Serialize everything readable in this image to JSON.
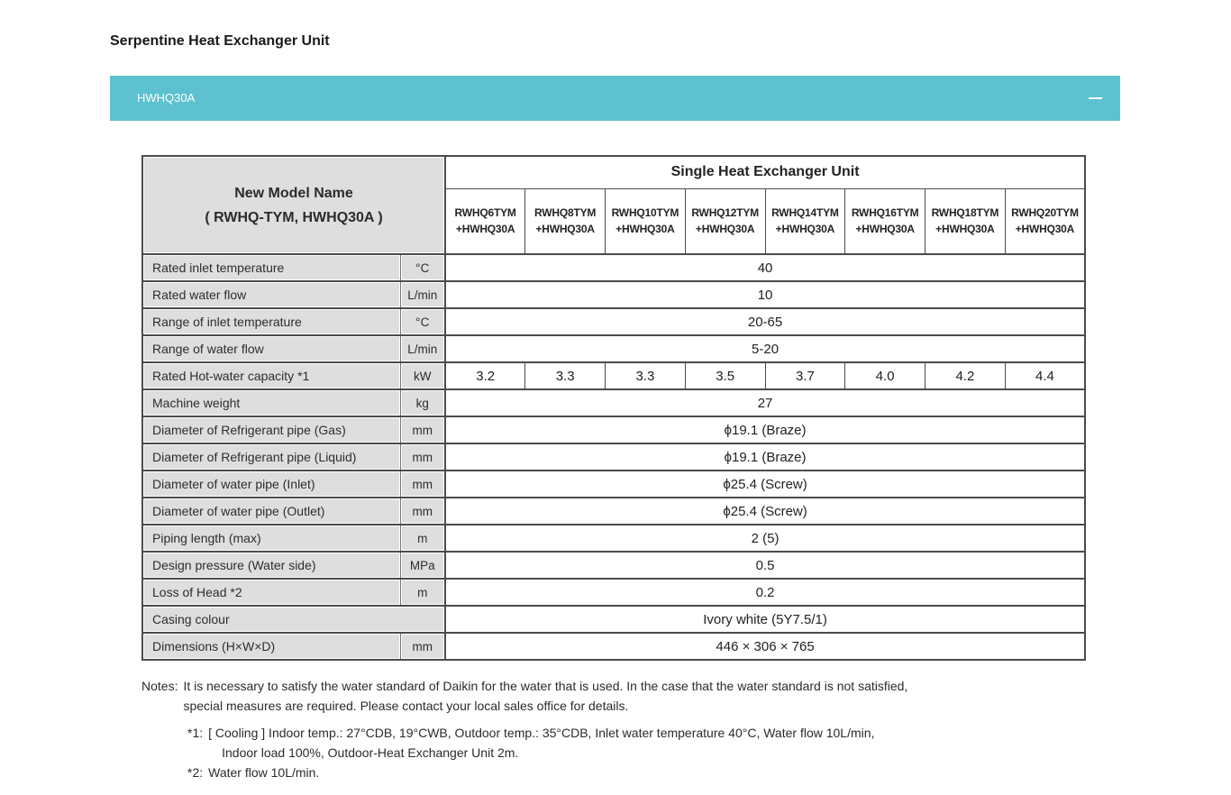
{
  "page": {
    "title": "Serpentine Heat Exchanger Unit"
  },
  "colors": {
    "accent_teal": "#5ec1cf",
    "cell_gray": "#dedede",
    "border_dark": "#4b4b4b"
  },
  "accordion": {
    "label": "HWHQ30A",
    "state_icon": "minus-icon"
  },
  "table": {
    "corner_header": {
      "line1": "New Model Name",
      "line2": "( RWHQ-TYM, HWHQ30A )"
    },
    "group_header": "Single Heat Exchanger Unit",
    "model_columns": [
      {
        "line1": "RWHQ6TYM",
        "line2": "+HWHQ30A"
      },
      {
        "line1": "RWHQ8TYM",
        "line2": "+HWHQ30A"
      },
      {
        "line1": "RWHQ10TYM",
        "line2": "+HWHQ30A"
      },
      {
        "line1": "RWHQ12TYM",
        "line2": "+HWHQ30A"
      },
      {
        "line1": "RWHQ14TYM",
        "line2": "+HWHQ30A"
      },
      {
        "line1": "RWHQ16TYM",
        "line2": "+HWHQ30A"
      },
      {
        "line1": "RWHQ18TYM",
        "line2": "+HWHQ30A"
      },
      {
        "line1": "RWHQ20TYM",
        "line2": "+HWHQ30A"
      }
    ],
    "rows": [
      {
        "label": "Rated inlet temperature",
        "unit": "°C",
        "value": "40"
      },
      {
        "label": "Rated water flow",
        "unit": "L/min",
        "value": "10"
      },
      {
        "label": "Range of inlet temperature",
        "unit": "°C",
        "value": "20-65"
      },
      {
        "label": "Range of water flow",
        "unit": "L/min",
        "value": "5-20"
      },
      {
        "label": "Rated Hot-water capacity *1",
        "unit": "kW",
        "values": [
          "3.2",
          "3.3",
          "3.3",
          "3.5",
          "3.7",
          "4.0",
          "4.2",
          "4.4"
        ]
      },
      {
        "label": "Machine weight",
        "unit": "kg",
        "value": "27"
      },
      {
        "label": "Diameter of Refrigerant pipe (Gas)",
        "unit": "mm",
        "value": "ϕ19.1 (Braze)"
      },
      {
        "label": "Diameter of Refrigerant pipe (Liquid)",
        "unit": "mm",
        "value": "ϕ19.1 (Braze)"
      },
      {
        "label": "Diameter of water pipe (Inlet)",
        "unit": "mm",
        "value": "ϕ25.4 (Screw)"
      },
      {
        "label": "Diameter of water pipe (Outlet)",
        "unit": "mm",
        "value": "ϕ25.4 (Screw)"
      },
      {
        "label": "Piping length (max)",
        "unit": "m",
        "value": "2 (5)"
      },
      {
        "label": "Design pressure (Water side)",
        "unit": "MPa",
        "value": "0.5"
      },
      {
        "label": "Loss of Head *2",
        "unit": "m",
        "value": "0.2"
      },
      {
        "label": "Casing colour",
        "unit": null,
        "value": "Ivory white (5Y7.5/1)"
      },
      {
        "label": "Dimensions (H×W×D)",
        "unit": "mm",
        "value": "446 × 306 × 765"
      }
    ]
  },
  "notes": {
    "label": "Notes:",
    "main_line1": "It is necessary to satisfy the water standard of Daikin for the water that is used. In the case that the water standard is not satisfied,",
    "main_line2": "special measures are required. Please contact your local sales office for details.",
    "fn1_label": "*1:",
    "fn1_line1": "[ Cooling ] Indoor temp.: 27°CDB, 19°CWB, Outdoor temp.: 35°CDB, Inlet water temperature 40°C, Water flow 10L/min,",
    "fn1_line2": "Indoor load 100%, Outdoor-Heat Exchanger Unit 2m.",
    "fn2_label": "*2:",
    "fn2_text": "Water flow 10L/min."
  }
}
